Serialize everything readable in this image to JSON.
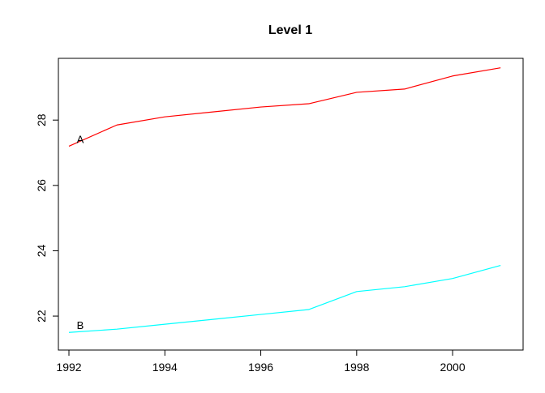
{
  "chart_data": {
    "type": "line",
    "title": "Level 1",
    "x": [
      1992,
      1993,
      1994,
      1995,
      1996,
      1997,
      1998,
      1999,
      2000,
      2001
    ],
    "series": [
      {
        "name": "A",
        "label": "A",
        "color": "#FF0000",
        "values": [
          27.2,
          27.85,
          28.1,
          28.25,
          28.4,
          28.5,
          28.85,
          28.95,
          29.35,
          29.6
        ]
      },
      {
        "name": "B",
        "label": "B",
        "color": "#00FFFF",
        "values": [
          21.5,
          21.6,
          21.75,
          21.9,
          22.05,
          22.2,
          22.75,
          22.9,
          23.15,
          23.55
        ]
      }
    ],
    "xticks": [
      1992,
      1994,
      1996,
      1998,
      2000
    ],
    "yticks": [
      22,
      24,
      26,
      28
    ],
    "xlabel": "",
    "ylabel": "",
    "xlim": [
      1991.78,
      2001.47
    ],
    "ylim": [
      20.96,
      29.89
    ],
    "grid": false,
    "legend": "none"
  }
}
